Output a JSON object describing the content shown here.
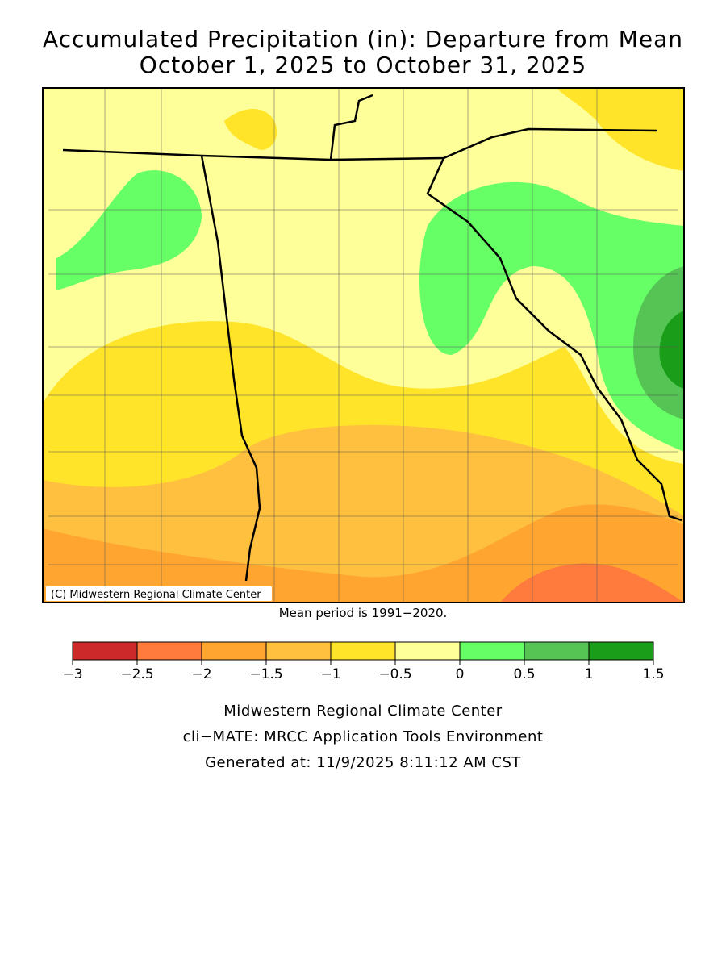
{
  "title": [
    "Accumulated Precipitation (in): Departure from Mean",
    "October 1, 2025 to October 31, 2025"
  ],
  "map": {
    "copyright": "(C) Midwestern Regional Climate Center",
    "note": "Mean period is 1991−2020."
  },
  "legend": {
    "ticks": [
      {
        "value": -3,
        "label": "−3"
      },
      {
        "value": -2.5,
        "label": "−2.5"
      },
      {
        "value": -2,
        "label": "−2"
      },
      {
        "value": -1.5,
        "label": "−1.5"
      },
      {
        "value": -1,
        "label": "−1"
      },
      {
        "value": -0.5,
        "label": "−0.5"
      },
      0,
      0.5,
      1,
      1.5
    ],
    "colors": [
      "#cc2a2a",
      "#ff7a3d",
      "#ffa530",
      "#ffc040",
      "#ffe42a",
      "#ffff99",
      "#66ff66",
      "#55c455",
      "#1a9e1a"
    ]
  },
  "footer": [
    "Midwestern Regional Climate Center",
    "cli−MATE: MRCC Application Tools Environment",
    "Generated at: 11/9/2025 8:11:12 AM CST"
  ]
}
